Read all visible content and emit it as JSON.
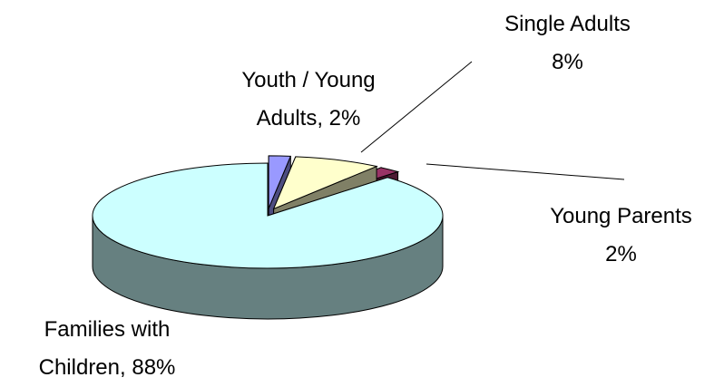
{
  "chart_data": {
    "type": "pie",
    "labels": [
      "Youth / Young Adults, 2%",
      "Single Adults 8%",
      "Young Parents 2%",
      "Families with Children, 88%"
    ],
    "values": [
      2,
      8,
      2,
      88
    ],
    "colors": [
      "#9999ff",
      "#ffffcc",
      "#993366",
      "#ccffff"
    ],
    "side_colors": [
      "#4d4d80",
      "#808066",
      "#4d1a33",
      "#668080"
    ],
    "start_angle": 0
  }
}
